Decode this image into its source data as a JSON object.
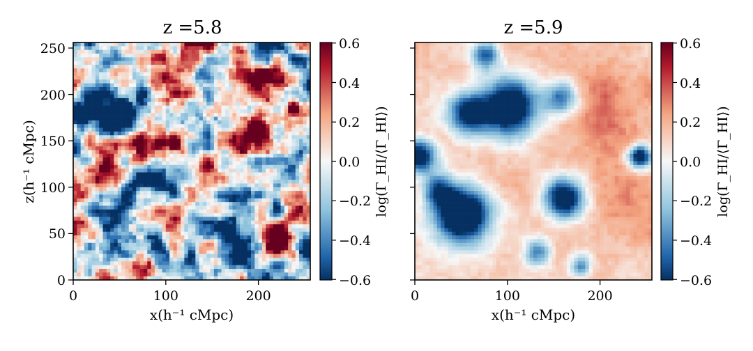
{
  "figure": {
    "type": "heatmap-pair"
  },
  "chart_data": [
    {
      "type": "heatmap",
      "title": "z =5.8",
      "xlabel": "x(h⁻¹ cMpc)",
      "ylabel": "z(h⁻¹ cMpc)",
      "xlim": [
        0,
        256
      ],
      "ylim": [
        0,
        256
      ],
      "xticks": [
        "0",
        "100",
        "200"
      ],
      "yticks": [
        "0",
        "50",
        "100",
        "150",
        "200",
        "250"
      ],
      "grid": "64x64 cells, each 4 h⁻¹ cMpc",
      "field_character": "fluctuating, high-contrast; strong positive patches upper-right and lower-right, many saturated negative regions",
      "colorbar": {
        "label": "log(Γ_HI/⟨Γ_HI⟩)",
        "range": [
          -0.6,
          0.6
        ],
        "ticks": [
          "0.6",
          "0.4",
          "0.2",
          "0.0",
          "−0.2",
          "−0.4",
          "−0.6"
        ],
        "cmap": "RdBu_r"
      }
    },
    {
      "type": "heatmap",
      "title": "z =5.9",
      "xlabel": "x(h⁻¹ cMpc)",
      "ylabel": "",
      "xlim": [
        0,
        256
      ],
      "ylim": [
        0,
        256
      ],
      "xticks": [
        "0",
        "100",
        "200"
      ],
      "yticks": [],
      "grid": "64x64 cells, each 4 h⁻¹ cMpc",
      "field_character": "smoother; mostly light-positive background with large contiguous negative islands",
      "colorbar": {
        "label": "log(Γ_HI/⟨Γ_HI⟩)",
        "range": [
          -0.6,
          0.6
        ],
        "ticks": [
          "0.6",
          "0.4",
          "0.2",
          "0.0",
          "−0.2",
          "−0.4",
          "−0.6"
        ],
        "cmap": "RdBu_r"
      }
    }
  ],
  "labels": {
    "title_left": "z =5.8",
    "title_right": "z =5.9",
    "x_axis_left": "x(h⁻¹ cMpc)",
    "x_axis_right": "x(h⁻¹ cMpc)",
    "y_axis_left": "z(h⁻¹ cMpc)",
    "colorbar_left": "log(Γ_HI/⟨Γ_HI⟩)",
    "colorbar_right": "log(Γ_HI/⟨Γ_HI⟩)"
  },
  "colors": {
    "dark_red": "#67001f",
    "red": "#b2182b",
    "light_red": "#f4a582",
    "white": "#f7f7f7",
    "light_blue": "#92c5de",
    "blue": "#2166ac",
    "dark_blue": "#053061"
  }
}
